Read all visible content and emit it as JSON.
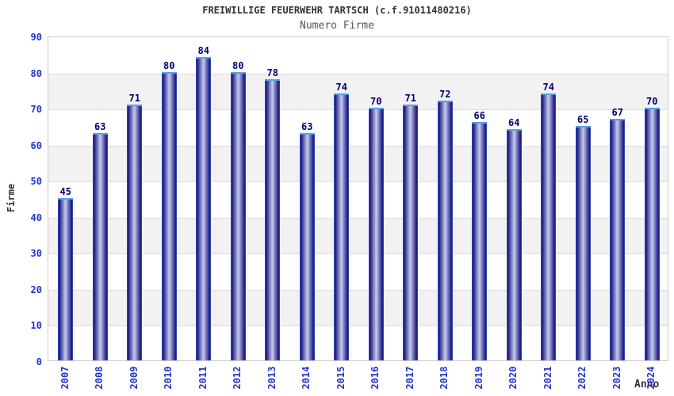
{
  "chart_data": {
    "type": "bar",
    "title": "FREIWILLIGE FEUERWEHR TARTSCH (c.f.91011480216)",
    "subtitle": "Numero Firme",
    "xlabel": "Anno",
    "ylabel": "Firme",
    "categories": [
      "2007",
      "2008",
      "2009",
      "2010",
      "2011",
      "2012",
      "2013",
      "2014",
      "2015",
      "2016",
      "2017",
      "2018",
      "2019",
      "2020",
      "2021",
      "2022",
      "2023",
      "2024"
    ],
    "values": [
      45,
      63,
      71,
      80,
      84,
      80,
      78,
      63,
      74,
      70,
      71,
      72,
      66,
      64,
      74,
      65,
      67,
      70
    ],
    "ylim": [
      0,
      90
    ],
    "ytick_step": 10,
    "grid": true,
    "bands_alternating": true,
    "legend": "none",
    "bar_labels_shown": true
  },
  "colors": {
    "title": "#333333",
    "subtitle": "#555555",
    "tick_label": "#2233cc",
    "value_label": "#000077",
    "band": "#f2f2f2",
    "gridline": "#e0e0e0",
    "plot_border": "#cccccc",
    "bar_dark": "#16157e",
    "bar_light": "#c7cbee",
    "bar_outline": "#3a5ad0",
    "bar_top_cap": "#5aa0e8"
  }
}
